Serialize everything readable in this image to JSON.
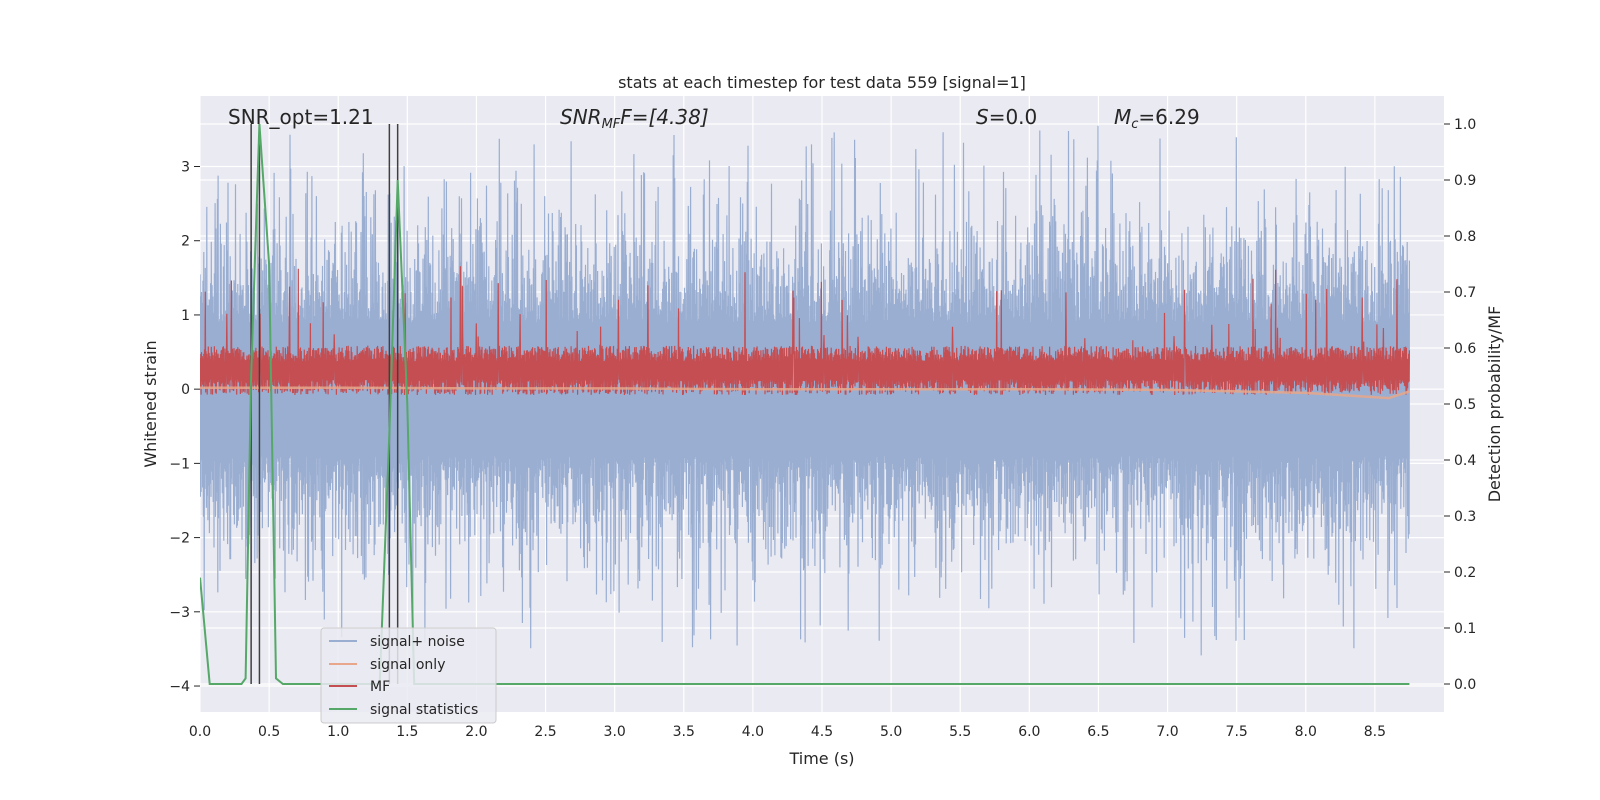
{
  "chart_data": {
    "type": "line",
    "title": "stats at each timestep for test data 559 [signal=1]",
    "xlabel": "Time (s)",
    "ylabel_left": "Whitened strain",
    "ylabel_right": "Detection probability/MF",
    "xlim": [
      0.0,
      9.0
    ],
    "ylim_left": [
      -4.35,
      3.95
    ],
    "ylim_right": [
      -0.05,
      1.05
    ],
    "xticks": [
      "0.0",
      "0.5",
      "1.0",
      "1.5",
      "2.0",
      "2.5",
      "3.0",
      "3.5",
      "4.0",
      "4.5",
      "5.0",
      "5.5",
      "6.0",
      "6.5",
      "7.0",
      "7.5",
      "8.0",
      "8.5"
    ],
    "yticks_left": [
      "3",
      "2",
      "1",
      "0",
      "−1",
      "−2",
      "−3",
      "−4"
    ],
    "yticks_left_values": [
      3,
      2,
      1,
      0,
      -1,
      -2,
      -3,
      -4
    ],
    "yticks_right": [
      "1.0",
      "0.9",
      "0.8",
      "0.7",
      "0.6",
      "0.5",
      "0.4",
      "0.3",
      "0.2",
      "0.1",
      "0.0"
    ],
    "yticks_right_values": [
      1.0,
      0.9,
      0.8,
      0.7,
      0.6,
      0.5,
      0.4,
      0.3,
      0.2,
      0.1,
      0.0
    ],
    "grid": true,
    "legend_position": "lower-left",
    "annotations": {
      "snr_opt": "SNR_opt=1.21",
      "snr_mf_prefix": "SNR",
      "snr_mf_sub": "MF",
      "snr_mf_suffix": "F=[4.38]",
      "s_prefix": "S",
      "s_suffix": "=0.0",
      "mc_prefix": "M",
      "mc_sub": "c",
      "mc_suffix": "=6.29"
    },
    "vertical_lines_x": [
      0.37,
      0.43,
      1.37,
      1.43
    ],
    "series": [
      {
        "name": "signal+ noise",
        "color": "#9aaed2",
        "axis": "left",
        "description_values": {
          "approx_min": -4.0,
          "approx_max": 3.55,
          "dense_band": [
            -1.8,
            1.8
          ]
        }
      },
      {
        "name": "signal only",
        "color": "#e8a78a",
        "axis": "left",
        "points": [
          [
            0.0,
            0.02
          ],
          [
            1.0,
            0.02
          ],
          [
            2.0,
            0.01
          ],
          [
            3.0,
            0.01
          ],
          [
            4.0,
            0.0
          ],
          [
            5.0,
            0.0
          ],
          [
            6.0,
            0.0
          ],
          [
            7.0,
            -0.01
          ],
          [
            8.0,
            -0.05
          ],
          [
            8.6,
            -0.12
          ],
          [
            8.75,
            -0.03
          ]
        ]
      },
      {
        "name": "MF",
        "color": "#c44e52",
        "axis": "right",
        "description_values": {
          "band": [
            0.52,
            0.6
          ],
          "spike_max": 0.75
        }
      },
      {
        "name": "signal statistics",
        "color": "#55a868",
        "axis": "right",
        "points": [
          [
            0.0,
            0.19
          ],
          [
            0.03,
            0.11
          ],
          [
            0.07,
            0.0
          ],
          [
            0.15,
            0.0
          ],
          [
            0.3,
            0.0
          ],
          [
            0.33,
            0.01
          ],
          [
            0.37,
            0.55
          ],
          [
            0.43,
            1.0
          ],
          [
            0.5,
            0.75
          ],
          [
            0.55,
            0.01
          ],
          [
            0.6,
            0.0
          ],
          [
            0.7,
            0.0
          ],
          [
            0.8,
            0.0
          ],
          [
            1.3,
            0.0
          ],
          [
            1.37,
            0.45
          ],
          [
            1.43,
            0.9
          ],
          [
            1.5,
            0.5
          ],
          [
            1.55,
            0.0
          ],
          [
            2.0,
            0.0
          ],
          [
            3.0,
            0.0
          ],
          [
            4.0,
            0.0
          ],
          [
            5.0,
            0.0
          ],
          [
            6.0,
            0.0
          ],
          [
            7.0,
            0.0
          ],
          [
            8.0,
            0.0
          ],
          [
            8.75,
            0.0
          ]
        ]
      }
    ]
  }
}
